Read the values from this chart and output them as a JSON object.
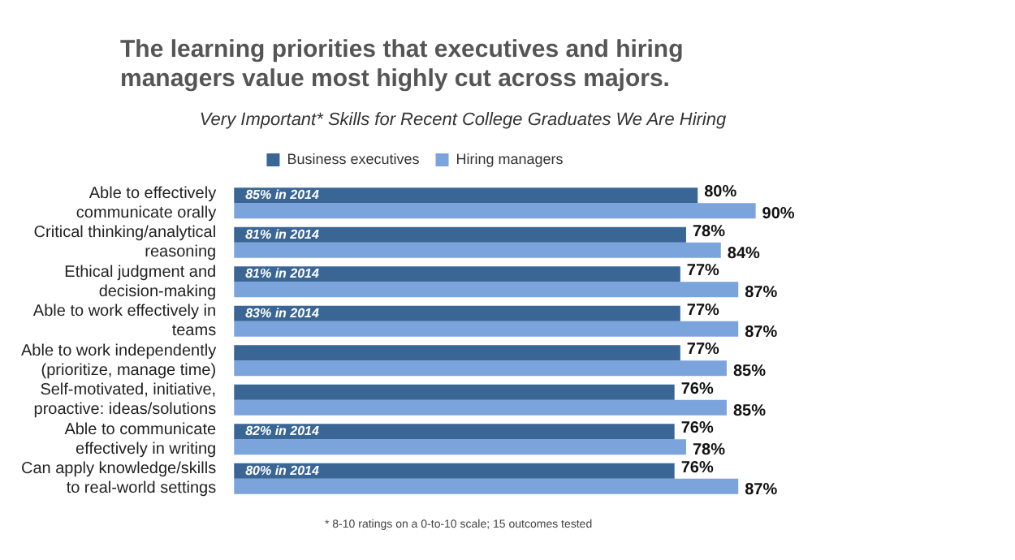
{
  "chart_data": {
    "type": "bar",
    "orientation": "horizontal",
    "title": "The learning priorities that executives and hiring managers value most highly cut across majors.",
    "subtitle": "Very Important* Skills for Recent College Graduates We Are Hiring",
    "categories": [
      "Able to effectively communicate orally",
      "Critical thinking/analytical reasoning",
      "Ethical judgment and decision-making",
      "Able to work effectively in teams",
      "Able to work independently (prioritize, manage time)",
      "Self-motivated, initiative, proactive: ideas/solutions",
      "Able to communicate effectively in writing",
      "Can apply knowledge/skills to real-world settings"
    ],
    "series": [
      {
        "name": "Business executives",
        "color": "#3a6696",
        "values": [
          80,
          78,
          77,
          77,
          77,
          76,
          76,
          76
        ],
        "value_labels": [
          "80%",
          "78%",
          "77%",
          "77%",
          "77%",
          "76%",
          "76%",
          "76%"
        ]
      },
      {
        "name": "Hiring managers",
        "color": "#7ba3dc",
        "values": [
          90,
          84,
          87,
          87,
          85,
          85,
          78,
          87
        ],
        "value_labels": [
          "90%",
          "84%",
          "87%",
          "87%",
          "85%",
          "85%",
          "78%",
          "87%"
        ]
      }
    ],
    "legend": "top",
    "annotations": [
      {
        "text": "85% in 2014",
        "y": "Able to effectively communicate orally"
      },
      {
        "text": "81% in 2014",
        "y": "Critical thinking/analytical reasoning"
      },
      {
        "text": "81% in 2014",
        "y": "Ethical judgment and decision-making"
      },
      {
        "text": "83% in 2014",
        "y": "Able to work effectively in teams"
      },
      {
        "text": "82% in 2014",
        "y": "Able to communicate effectively in writing"
      },
      {
        "text": "80% in 2014",
        "y": "Can apply knowledge/skills to real-world settings"
      },
      "* 8-10 ratings on a 0-to-10 scale; 15 outcomes tested"
    ]
  }
}
